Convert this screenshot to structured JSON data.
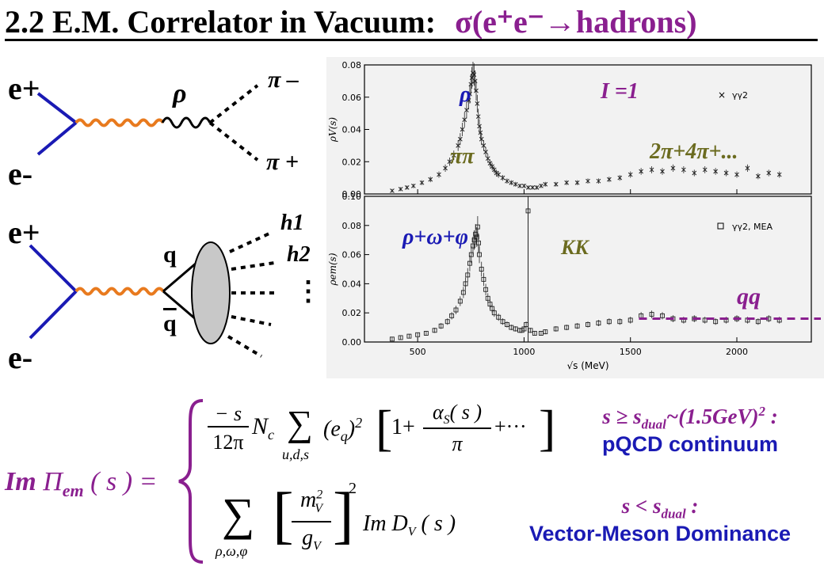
{
  "title": {
    "prefix": "2.2 E.M. Correlator in Vacuum:",
    "sigma_expr": "σ(e⁺e⁻→hadrons)"
  },
  "colors": {
    "purple": "#8a1f8f",
    "blue": "#1a1ab4",
    "olive": "#6b6b1f",
    "orange": "#e87a1e"
  },
  "diagram_top": {
    "e_plus": "e+",
    "e_minus": "e-",
    "rho": "ρ",
    "pi_minus": "π –",
    "pi_plus": "π +"
  },
  "diagram_bottom": {
    "e_plus": "e+",
    "e_minus": "e-",
    "q": "q",
    "qbar": "q",
    "h1": "h1",
    "h2": "h2",
    "dots": "⋮"
  },
  "chart_data": [
    {
      "type": "scatter",
      "ylabel": "ρV(s)",
      "xlim": [
        250,
        2350
      ],
      "ylim": [
        0,
        0.08
      ],
      "yticks": [
        "0.00",
        "0.02",
        "0.04",
        "0.06",
        "0.08"
      ],
      "legend": "γγ2",
      "annotations": [
        "ρ",
        "I =1",
        "ππ",
        "2π+4π+..."
      ],
      "x": [
        380,
        420,
        450,
        480,
        520,
        560,
        600,
        630,
        650,
        670,
        690,
        700,
        710,
        720,
        730,
        740,
        745,
        750,
        755,
        760,
        765,
        770,
        775,
        780,
        785,
        790,
        795,
        800,
        810,
        820,
        830,
        840,
        850,
        860,
        870,
        880,
        900,
        920,
        940,
        960,
        980,
        1000,
        1020,
        1040,
        1060,
        1080,
        1100,
        1150,
        1200,
        1250,
        1300,
        1350,
        1400,
        1450,
        1500,
        1550,
        1600,
        1650,
        1700,
        1750,
        1800,
        1850,
        1900,
        1950,
        2000,
        2050,
        2100,
        2150,
        2200
      ],
      "values": [
        0.002,
        0.003,
        0.004,
        0.005,
        0.007,
        0.009,
        0.012,
        0.016,
        0.02,
        0.024,
        0.03,
        0.034,
        0.04,
        0.046,
        0.052,
        0.058,
        0.062,
        0.068,
        0.072,
        0.075,
        0.074,
        0.07,
        0.064,
        0.056,
        0.048,
        0.042,
        0.038,
        0.034,
        0.03,
        0.026,
        0.022,
        0.019,
        0.017,
        0.015,
        0.013,
        0.012,
        0.01,
        0.008,
        0.007,
        0.006,
        0.005,
        0.005,
        0.004,
        0.004,
        0.004,
        0.005,
        0.006,
        0.006,
        0.007,
        0.007,
        0.008,
        0.008,
        0.009,
        0.01,
        0.012,
        0.014,
        0.015,
        0.014,
        0.016,
        0.015,
        0.013,
        0.015,
        0.014,
        0.013,
        0.012,
        0.016,
        0.011,
        0.013,
        0.012
      ]
    },
    {
      "type": "scatter",
      "ylabel": "ρem(s)",
      "xlabel": "√s (MeV)",
      "xlim": [
        250,
        2350
      ],
      "ylim": [
        0,
        0.1
      ],
      "xticks": [
        "500",
        "1000",
        "1500",
        "2000"
      ],
      "yticks": [
        "0.00",
        "0.02",
        "0.04",
        "0.06",
        "0.08",
        "0.10"
      ],
      "legend": "γγ2, MEA",
      "annotations": [
        "ρ+ω+φ",
        "KK",
        "qq"
      ],
      "x": [
        380,
        420,
        460,
        500,
        540,
        580,
        610,
        640,
        660,
        680,
        700,
        715,
        725,
        735,
        745,
        752,
        760,
        766,
        772,
        778,
        782,
        786,
        790,
        800,
        810,
        820,
        830,
        840,
        850,
        860,
        880,
        900,
        920,
        940,
        960,
        980,
        990,
        1000,
        1010,
        1019,
        1030,
        1050,
        1080,
        1100,
        1150,
        1200,
        1250,
        1300,
        1350,
        1400,
        1450,
        1500,
        1550,
        1600,
        1650,
        1700,
        1750,
        1800,
        1850,
        1900,
        1950,
        2000,
        2050,
        2100,
        2150,
        2200
      ],
      "values": [
        0.002,
        0.003,
        0.004,
        0.005,
        0.006,
        0.008,
        0.011,
        0.014,
        0.018,
        0.022,
        0.028,
        0.034,
        0.04,
        0.046,
        0.054,
        0.06,
        0.066,
        0.07,
        0.074,
        0.072,
        0.079,
        0.068,
        0.06,
        0.05,
        0.043,
        0.036,
        0.03,
        0.026,
        0.023,
        0.02,
        0.017,
        0.014,
        0.012,
        0.01,
        0.009,
        0.008,
        0.008,
        0.009,
        0.012,
        0.09,
        0.008,
        0.006,
        0.006,
        0.007,
        0.009,
        0.01,
        0.011,
        0.012,
        0.013,
        0.014,
        0.014,
        0.015,
        0.018,
        0.019,
        0.018,
        0.016,
        0.015,
        0.016,
        0.015,
        0.014,
        0.015,
        0.016,
        0.015,
        0.014,
        0.016,
        0.015
      ]
    }
  ],
  "equation": {
    "lhs_im": "Im",
    "lhs_pi": "Π",
    "lhs_sub": "em",
    "lhs_arg": "( s ) =",
    "top_frac_num": "− s",
    "top_frac_den": "12π",
    "top_nc": "N",
    "top_nc_sub": "c",
    "top_sum_sub": "u,d,s",
    "top_eq": "(e",
    "top_eq_sub": "q",
    "top_eq_close": ")",
    "top_sq": "2",
    "top_one": "1+",
    "top_alpha_num": "α",
    "top_alpha_sub": "S",
    "top_alpha_arg": "( s )",
    "top_alpha_den": "π",
    "top_tail": "+···",
    "bot_sum_sub": "ρ,ω,φ",
    "bot_m": "m",
    "bot_m_sub": "V",
    "bot_m_sup": "2",
    "bot_g": "g",
    "bot_g_sub": "V",
    "bot_sq": "2",
    "bot_im": "Im D",
    "bot_im_sub": "V",
    "bot_im_arg": "( s )"
  },
  "conditions": {
    "top_line1_pre": "s ≥ s",
    "top_line1_sub": "dual",
    "top_line1_post": "~(1.5GeV)",
    "top_line1_sup": "2",
    "top_line1_end": " :",
    "top_line2": "pQCD continuum",
    "bot_line1_pre": "s < s",
    "bot_line1_sub": "dual",
    "bot_line1_end": " :",
    "bot_line2": "Vector-Meson Dominance"
  }
}
